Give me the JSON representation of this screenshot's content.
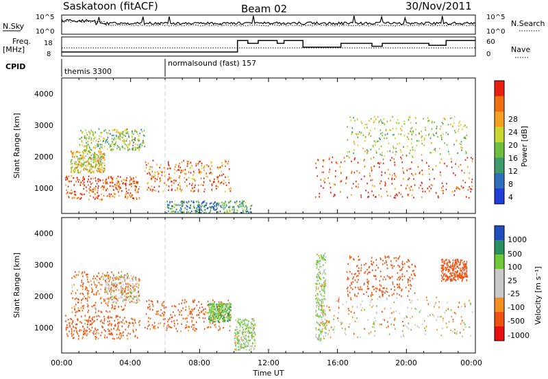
{
  "header": {
    "station": "Saskatoon (fitACF)",
    "beam": "Beam 02",
    "date": "30/Nov/2011"
  },
  "strip_nsky": {
    "left_label": "N.Sky",
    "right_label": "N.Search",
    "left_ticks": [
      "10^5",
      "10^0"
    ],
    "right_ticks": [
      "10^5",
      "10^0"
    ]
  },
  "strip_freq": {
    "left_label_1": "Freq.",
    "left_label_2": "[MHz]",
    "right_label": "Nave",
    "left_ticks": [
      "18",
      "8"
    ],
    "right_ticks": [
      "60",
      "0"
    ],
    "freq_mhz": [
      {
        "t": 0,
        "v": 10.5
      },
      {
        "t": 10.2,
        "v": 10.5
      },
      {
        "t": 10.2,
        "v": 16.5
      },
      {
        "t": 10.8,
        "v": 16.5
      },
      {
        "t": 10.8,
        "v": 15
      },
      {
        "t": 11.4,
        "v": 15
      },
      {
        "t": 11.4,
        "v": 16.5
      },
      {
        "t": 12.5,
        "v": 16.5
      },
      {
        "t": 12.5,
        "v": 15
      },
      {
        "t": 12.9,
        "v": 15
      },
      {
        "t": 12.9,
        "v": 16.5
      },
      {
        "t": 14,
        "v": 16.5
      },
      {
        "t": 14,
        "v": 13
      },
      {
        "t": 16.2,
        "v": 13
      },
      {
        "t": 16.2,
        "v": 15
      },
      {
        "t": 18,
        "v": 15
      },
      {
        "t": 18,
        "v": 13.5
      },
      {
        "t": 18.6,
        "v": 13.5
      },
      {
        "t": 18.6,
        "v": 15
      },
      {
        "t": 21.3,
        "v": 15
      },
      {
        "t": 21.3,
        "v": 14
      },
      {
        "t": 22.3,
        "v": 14
      },
      {
        "t": 22.3,
        "v": 16.5
      },
      {
        "t": 24,
        "v": 16.5
      }
    ]
  },
  "cpid": {
    "label": "CPID",
    "segments": [
      {
        "start_ut": 0,
        "name": "themis 3300"
      },
      {
        "start_ut": 6,
        "name": "normalsound (fast) 157"
      }
    ]
  },
  "time_axis": {
    "label": "Time UT",
    "ticks": [
      "00:00",
      "04:00",
      "08:00",
      "12:00",
      "16:00",
      "20:00",
      "00:00"
    ]
  },
  "power_panel": {
    "ylabel": "Slant Range [km]",
    "yticks": [
      "4000",
      "3000",
      "2000",
      "1000"
    ],
    "colorbar_label": "Power [dB]",
    "colorbar_ticks": [
      "28",
      "24",
      "20",
      "16",
      "12",
      "8",
      "4"
    ]
  },
  "velocity_panel": {
    "ylabel": "Slant Range [km]",
    "yticks": [
      "4000",
      "3000",
      "2000",
      "1000"
    ],
    "colorbar_label": "Velocity [m s⁻¹]",
    "colorbar_ticks": [
      "1000",
      "500",
      "100",
      "25",
      "-25",
      "-100",
      "-500",
      "-1000"
    ]
  },
  "chart_data": {
    "type": "heatmap",
    "x_range_ut_hours": [
      0,
      24
    ],
    "y_range_km": [
      180,
      4500
    ],
    "power_scale_db": [
      0,
      30
    ],
    "velocity_scale": [
      -1000,
      1000
    ],
    "colors": {
      "power": [
        "#1f3fd8",
        "#2f6fc0",
        "#3f9a6e",
        "#6fbf3f",
        "#c8d830",
        "#f5a020",
        "#f07010",
        "#e82010"
      ],
      "velocity": [
        "#e81010",
        "#f05010",
        "#f39020",
        "#c8c8c8",
        "#c8c8c8",
        "#6fc83a",
        "#2a9060",
        "#2050c0"
      ]
    },
    "echo_regions_power": [
      {
        "t0": 0.2,
        "t1": 4.5,
        "r0": 650,
        "r1": 1400,
        "level": 26
      },
      {
        "t0": 0.5,
        "t1": 2.5,
        "r0": 1500,
        "r1": 2200,
        "level": 18
      },
      {
        "t0": 1.0,
        "t1": 4.8,
        "r0": 2200,
        "r1": 2900,
        "level": 14
      },
      {
        "t0": 4.8,
        "t1": 9.8,
        "r0": 900,
        "r1": 1900,
        "level": 24
      },
      {
        "t0": 6.0,
        "t1": 11.0,
        "r0": 220,
        "r1": 600,
        "level": 9
      },
      {
        "t0": 14.7,
        "t1": 23.8,
        "r0": 700,
        "r1": 2000,
        "level": 26
      },
      {
        "t0": 16.5,
        "t1": 23.5,
        "r0": 2000,
        "r1": 3300,
        "level": 15
      }
    ],
    "echo_regions_velocity": [
      {
        "t0": 0.2,
        "t1": 4.5,
        "r0": 650,
        "r1": 1400,
        "vel": -200
      },
      {
        "t0": 0.5,
        "t1": 3.8,
        "r0": 1500,
        "r1": 2800,
        "vel": -150
      },
      {
        "t0": 2.5,
        "t1": 4.5,
        "r0": 1800,
        "r1": 2700,
        "vel": 0
      },
      {
        "t0": 4.8,
        "t1": 9.8,
        "r0": 900,
        "r1": 1900,
        "vel": -200
      },
      {
        "t0": 8.5,
        "t1": 9.8,
        "r0": 1200,
        "r1": 1800,
        "vel": 400
      },
      {
        "t0": 10.0,
        "t1": 11.2,
        "r0": 300,
        "r1": 1300,
        "vel": 100
      },
      {
        "t0": 14.7,
        "t1": 15.3,
        "r0": 600,
        "r1": 3400,
        "vel": 100
      },
      {
        "t0": 15.0,
        "t1": 23.8,
        "r0": 700,
        "r1": 2000,
        "vel": 0
      },
      {
        "t0": 16.5,
        "t1": 20.5,
        "r0": 2000,
        "r1": 3300,
        "vel": -300
      },
      {
        "t0": 22.0,
        "t1": 23.5,
        "r0": 2500,
        "r1": 3200,
        "vel": -250
      }
    ]
  }
}
